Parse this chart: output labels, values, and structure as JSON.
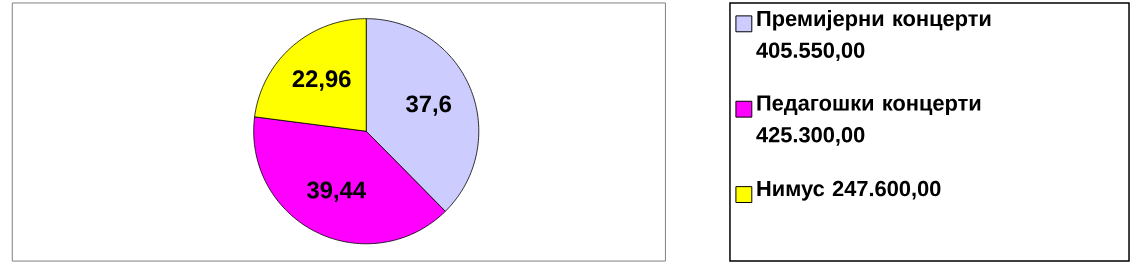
{
  "chart_data": {
    "type": "pie",
    "categories": [
      "Премијерни концерти 405.550,00",
      "Педагошки концерти 425.300,00",
      "Нимус 247.600,00"
    ],
    "values": [
      37.6,
      39.44,
      22.96
    ],
    "value_labels": [
      "37,6",
      "39,44",
      "22,96"
    ],
    "colors": [
      "#ccccff",
      "#ff00ff",
      "#ffff00"
    ],
    "legend": "right"
  }
}
